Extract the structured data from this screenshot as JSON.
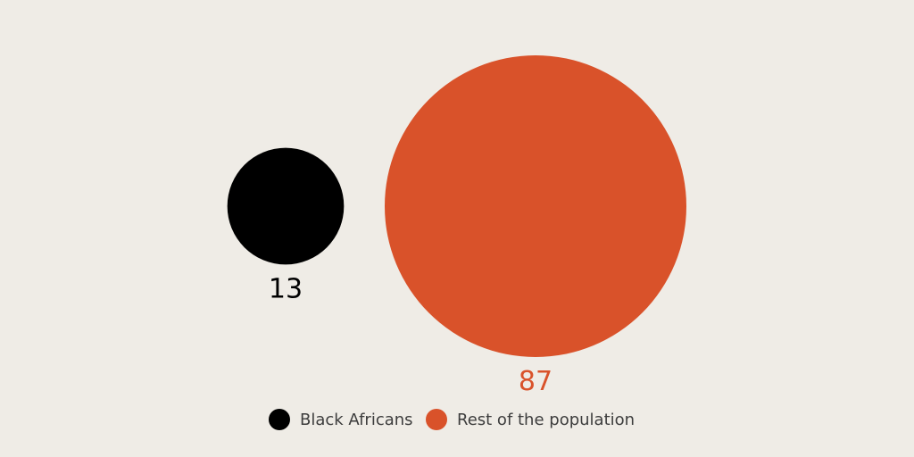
{
  "colors": {
    "background": "#efece6",
    "black_africans": "#000000",
    "rest_of_population": "#d9522a"
  },
  "chart_data": {
    "type": "bubble",
    "series": [
      {
        "name": "Black Africans",
        "value": 13,
        "color": "#000000"
      },
      {
        "name": "Rest of the population",
        "value": 87,
        "color": "#d9522a"
      }
    ],
    "legend_position": "bottom-center"
  }
}
